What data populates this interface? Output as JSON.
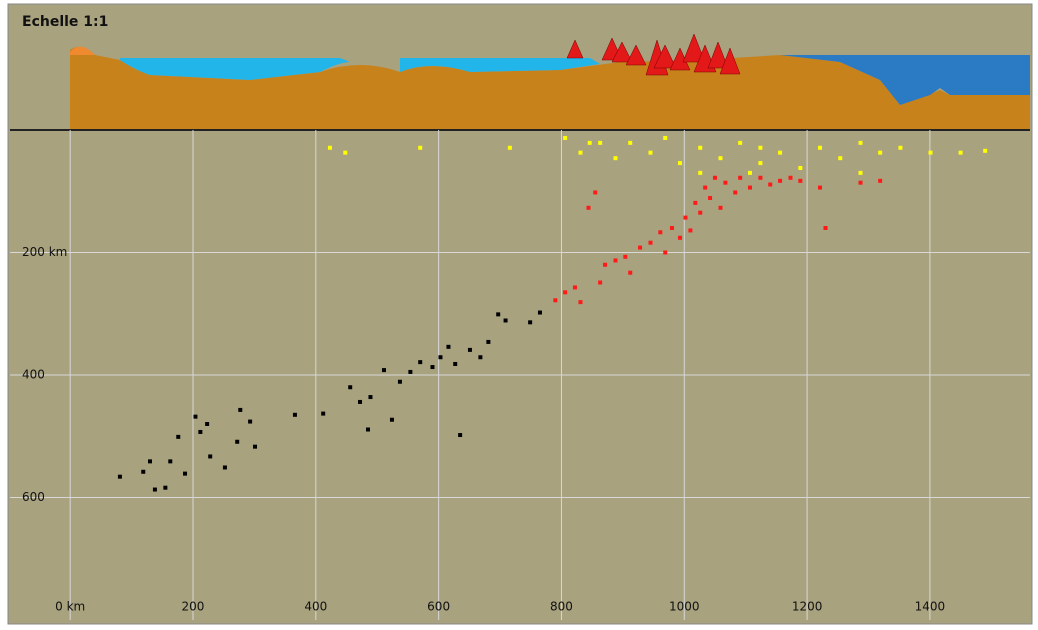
{
  "chart_data": {
    "type": "scatter",
    "title": "Echelle 1:1",
    "xlim": [
      -98,
      1563
    ],
    "ylim": [
      800,
      0
    ],
    "xticks": [
      {
        "value": 0,
        "label": "0 km"
      },
      200,
      400,
      600,
      800,
      1000,
      1200,
      1400
    ],
    "yticks": [
      {
        "value": 200,
        "label": "200 km"
      },
      400,
      600
    ],
    "grid": true,
    "series": [
      {
        "color": "#000000",
        "x": [
          81,
          119,
          130,
          138,
          155,
          163,
          176,
          187,
          204,
          212,
          223,
          228,
          252,
          272,
          277,
          293,
          301,
          366,
          412,
          456,
          472,
          485,
          489,
          511,
          524,
          537,
          554,
          570,
          590,
          603,
          616,
          627,
          635,
          651,
          668,
          681,
          697,
          709,
          749,
          765
        ],
        "values": [
          566,
          558,
          541,
          587,
          584,
          541,
          501,
          561,
          468,
          493,
          480,
          533,
          551,
          509,
          457,
          476,
          517,
          465,
          463,
          420,
          444,
          489,
          436,
          392,
          473,
          411,
          395,
          379,
          387,
          371,
          354,
          382,
          498,
          359,
          371,
          346,
          301,
          311,
          314,
          298
        ]
      },
      {
        "color": "#ff1a1a",
        "x": [
          790,
          806,
          822,
          831,
          863,
          871,
          888,
          904,
          912,
          928,
          945,
          961,
          969,
          980,
          993,
          1002,
          1010,
          1018,
          1026,
          1034,
          1042,
          1050,
          1059,
          1067,
          1083,
          1091,
          1107,
          1124,
          1140,
          1156,
          1173,
          1189,
          1221,
          1230,
          855,
          844,
          1287,
          1319
        ],
        "values": [
          278,
          265,
          257,
          281,
          249,
          220,
          213,
          207,
          233,
          192,
          184,
          167,
          200,
          160,
          176,
          143,
          164,
          119,
          135,
          94,
          111,
          78,
          127,
          86,
          102,
          78,
          94,
          78,
          89,
          83,
          78,
          83,
          94,
          160,
          102,
          127,
          86,
          83
        ]
      },
      {
        "color": "#ffff00",
        "x": [
          423,
          448,
          570,
          716,
          806,
          831,
          863,
          888,
          912,
          945,
          969,
          993,
          1026,
          1059,
          1091,
          1124,
          1156,
          1189,
          1221,
          1254,
          1287,
          1319,
          1352,
          1401,
          1450,
          1490,
          846,
          1124,
          1026,
          1107,
          1287
        ],
        "values": [
          29,
          37,
          29,
          29,
          13,
          37,
          21,
          46,
          21,
          37,
          13,
          54,
          29,
          46,
          21,
          54,
          37,
          62,
          29,
          46,
          21,
          37,
          29,
          37,
          37,
          34,
          21,
          29,
          70,
          70,
          70
        ]
      }
    ]
  }
}
